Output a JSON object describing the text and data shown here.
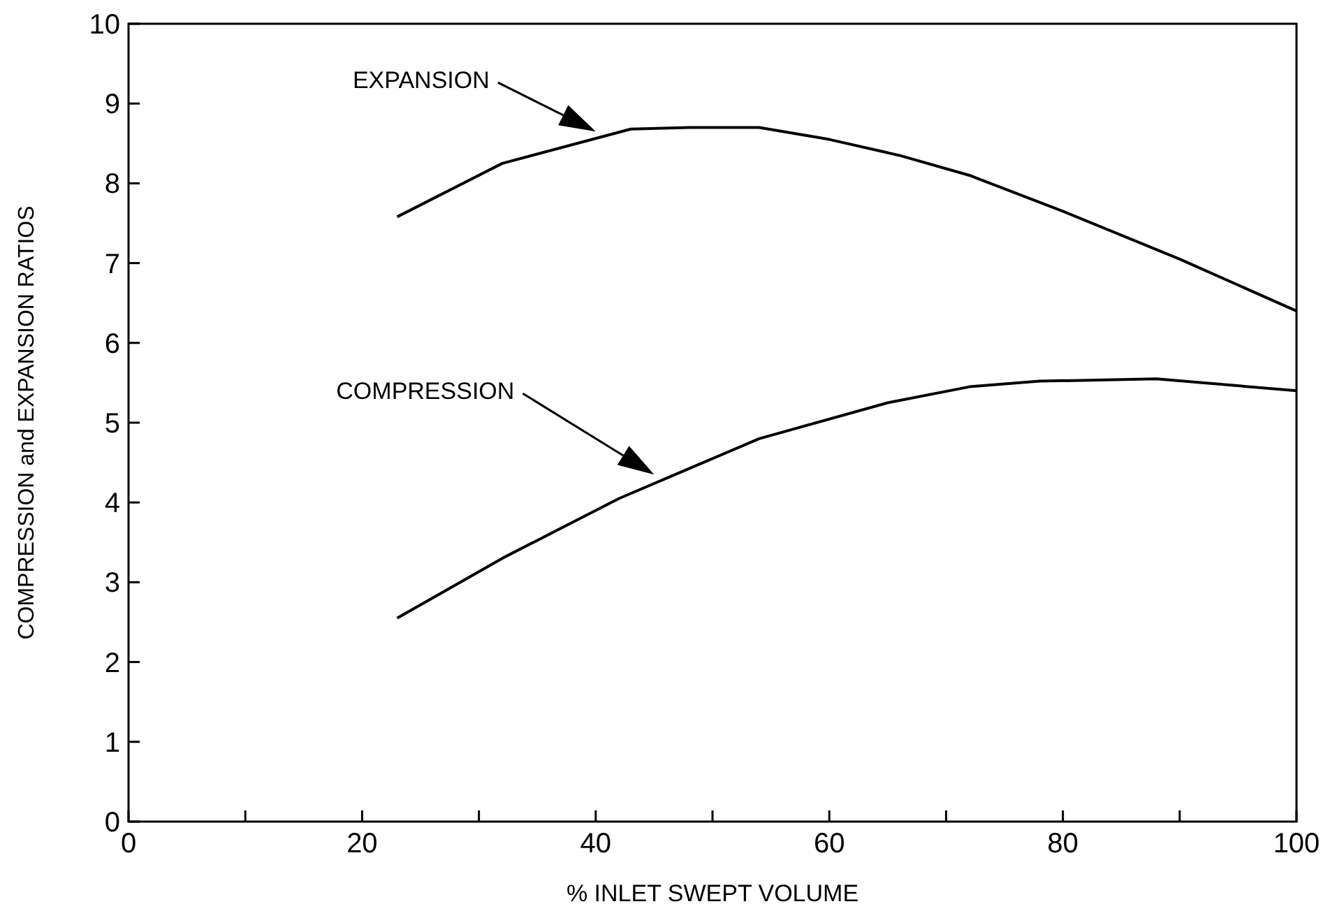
{
  "chart_data": {
    "type": "line",
    "xlabel": "% INLET SWEPT VOLUME",
    "ylabel": "COMPRESSION and EXPANSION RATIOS",
    "xlim": [
      0,
      100
    ],
    "ylim": [
      0,
      10
    ],
    "xticks": [
      0,
      {
        "value": 10,
        "label": null
      },
      20,
      {
        "value": 30,
        "label": null
      },
      40,
      {
        "value": 50,
        "label": null
      },
      60,
      {
        "value": 70,
        "label": null
      },
      80,
      {
        "value": 90,
        "label": null
      },
      100
    ],
    "yticks": [
      0,
      1,
      2,
      3,
      4,
      5,
      6,
      7,
      8,
      9,
      10
    ],
    "grid": false,
    "marker": "none",
    "line_style": "solid",
    "series": [
      {
        "color": "#000000",
        "x": [
          23,
          32,
          43,
          48,
          54,
          60,
          66,
          72,
          80,
          90,
          100
        ],
        "values": [
          7.58,
          8.25,
          8.68,
          8.7,
          8.7,
          8.55,
          8.35,
          8.1,
          7.65,
          7.05,
          6.4
        ]
      },
      {
        "color": "#000000",
        "x": [
          23,
          32,
          42,
          54,
          65,
          72,
          78,
          88,
          100
        ],
        "values": [
          2.55,
          3.3,
          4.05,
          4.8,
          5.25,
          5.45,
          5.52,
          5.55,
          5.4
        ]
      }
    ],
    "annotations": [
      "EXPANSION",
      "COMPRESSION"
    ]
  }
}
